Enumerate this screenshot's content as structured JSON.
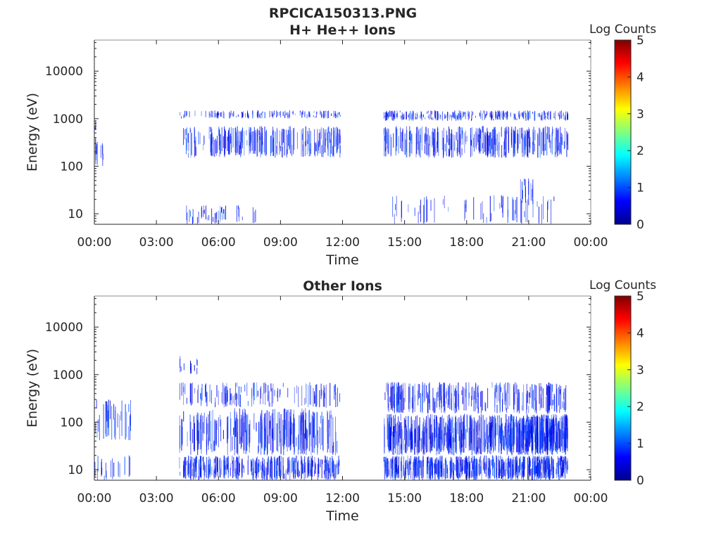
{
  "figure_title": "RPCICA150313.PNG",
  "colors": {
    "axis": "#262626",
    "colormap": [
      "#00008f",
      "#0000ff",
      "#0080ff",
      "#00ffff",
      "#80ff80",
      "#ffff00",
      "#ff8000",
      "#ff0000",
      "#800000"
    ]
  },
  "chart_data": [
    {
      "type": "heatmap",
      "title": "H+ He++ Ions",
      "xlabel": "Time",
      "ylabel": "Energy (eV)",
      "x_ticks": [
        "00:00",
        "03:00",
        "06:00",
        "09:00",
        "12:00",
        "15:00",
        "18:00",
        "21:00",
        "00:00"
      ],
      "x_range_hours": [
        0,
        24
      ],
      "y_scale": "log",
      "y_range_eV": [
        6,
        45000
      ],
      "y_ticks": [
        10,
        100,
        1000,
        10000
      ],
      "y_tick_labels": [
        "10",
        "100",
        "1000",
        "10000"
      ],
      "colorbar_label": "Log Counts",
      "colorbar_range": [
        0,
        5
      ],
      "colorbar_ticks": [
        "0",
        "1",
        "2",
        "3",
        "4",
        "5"
      ],
      "seed": 11,
      "regions": [
        {
          "t": [
            0.0,
            0.5
          ],
          "e": [
            100,
            400
          ],
          "density": 0.7
        },
        {
          "t": [
            0.0,
            0.25
          ],
          "e": [
            500,
            1000
          ],
          "density": 0.25
        },
        {
          "t": [
            4.1,
            11.9
          ],
          "e": [
            150,
            700
          ],
          "density": 0.9
        },
        {
          "t": [
            4.1,
            11.9
          ],
          "e": [
            1000,
            1500
          ],
          "density": 0.55
        },
        {
          "t": [
            4.3,
            7.9
          ],
          "e": [
            6,
            15
          ],
          "density": 0.35
        },
        {
          "t": [
            14.0,
            22.9
          ],
          "e": [
            150,
            700
          ],
          "density": 1.0
        },
        {
          "t": [
            14.0,
            22.9
          ],
          "e": [
            900,
            1500
          ],
          "density": 0.85
        },
        {
          "t": [
            14.3,
            22.5
          ],
          "e": [
            6,
            25
          ],
          "density": 0.25
        },
        {
          "t": [
            20.5,
            21.3
          ],
          "e": [
            15,
            60
          ],
          "density": 0.5
        }
      ]
    },
    {
      "type": "heatmap",
      "title": "Other Ions",
      "xlabel": "Time",
      "ylabel": "Energy (eV)",
      "x_ticks": [
        "00:00",
        "03:00",
        "06:00",
        "09:00",
        "12:00",
        "15:00",
        "18:00",
        "21:00",
        "00:00"
      ],
      "x_range_hours": [
        0,
        24
      ],
      "y_scale": "log",
      "y_range_eV": [
        6,
        45000
      ],
      "y_ticks": [
        10,
        100,
        1000,
        10000
      ],
      "y_tick_labels": [
        "10",
        "100",
        "1000",
        "10000"
      ],
      "colorbar_label": "Log Counts",
      "colorbar_range": [
        0,
        5
      ],
      "colorbar_ticks": [
        "0",
        "1",
        "2",
        "3",
        "4",
        "5"
      ],
      "seed": 29,
      "regions": [
        {
          "t": [
            0.0,
            1.8
          ],
          "e": [
            40,
            300
          ],
          "density": 0.6
        },
        {
          "t": [
            0.0,
            1.8
          ],
          "e": [
            6,
            20
          ],
          "density": 0.35
        },
        {
          "t": [
            4.1,
            11.9
          ],
          "e": [
            6,
            20
          ],
          "density": 1.3
        },
        {
          "t": [
            4.1,
            11.9
          ],
          "e": [
            20,
            200
          ],
          "density": 1.0
        },
        {
          "t": [
            4.1,
            11.9
          ],
          "e": [
            200,
            700
          ],
          "density": 0.5
        },
        {
          "t": [
            4.1,
            5.0
          ],
          "e": [
            1000,
            2500
          ],
          "density": 0.4
        },
        {
          "t": [
            14.0,
            22.9
          ],
          "e": [
            6,
            20
          ],
          "density": 1.8
        },
        {
          "t": [
            14.0,
            22.9
          ],
          "e": [
            20,
            150
          ],
          "density": 1.8
        },
        {
          "t": [
            14.0,
            22.9
          ],
          "e": [
            150,
            700
          ],
          "density": 0.9
        },
        {
          "t": [
            20.0,
            22.9
          ],
          "e": [
            20,
            150
          ],
          "density": 1.2
        }
      ]
    }
  ]
}
